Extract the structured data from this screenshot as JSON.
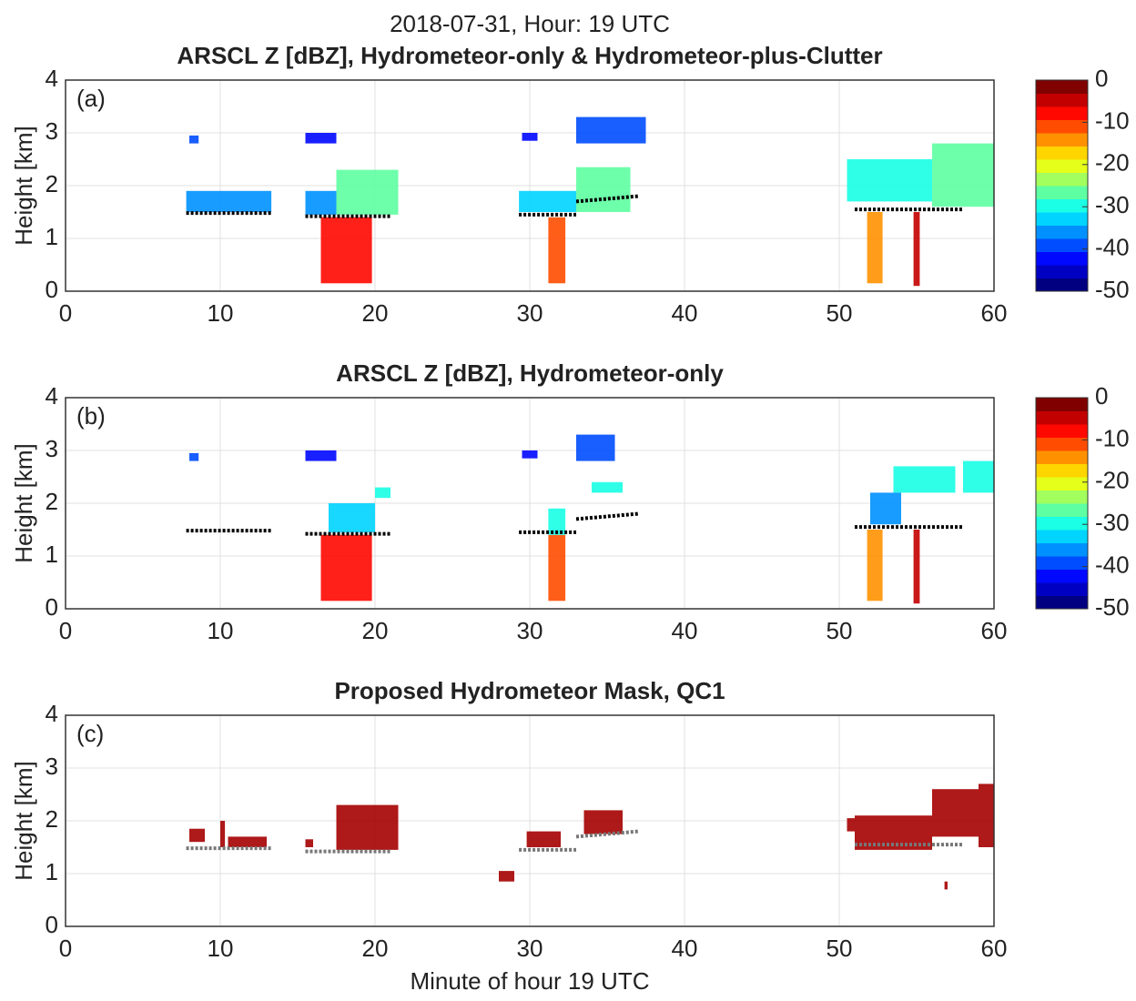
{
  "title": "2018-07-31, Hour: 19 UTC",
  "xlabel": "Minute of hour 19 UTC",
  "chart_data": [
    {
      "type": "heatmap",
      "title": "ARSCL Z [dBZ], Hydrometeor-only & Hydrometeor-plus-Clutter",
      "panel": "(a)",
      "ylabel": "Height [km]",
      "xlim": [
        0,
        60
      ],
      "xticks": [
        0,
        10,
        20,
        30,
        40,
        50,
        60
      ],
      "ylim": [
        0,
        4
      ],
      "yticks": [
        0,
        1,
        2,
        3,
        4
      ],
      "grid": true,
      "colormap": "jet",
      "colorbar": {
        "clim": [
          -50,
          0
        ],
        "ticks": [
          0,
          -10,
          -20,
          -30,
          -40,
          -50
        ]
      },
      "cells": {
        "x0": [
          7.8,
          8,
          15.5,
          17.5,
          15.5,
          16.5,
          29.3,
          33,
          29.5,
          33,
          31.2,
          50.5,
          56,
          51.8,
          54.8
        ],
        "x1": [
          13.3,
          8.6,
          17.5,
          21.5,
          17.5,
          19.8,
          33,
          36.5,
          30.5,
          37.5,
          32.3,
          56,
          60,
          52.8,
          55.2
        ],
        "y0": [
          1.5,
          2.8,
          1.45,
          1.45,
          2.8,
          0.15,
          1.5,
          1.5,
          2.85,
          2.8,
          0.15,
          1.7,
          1.6,
          0.15,
          0.1
        ],
        "y1": [
          1.9,
          2.95,
          1.9,
          2.3,
          3.0,
          1.4,
          1.9,
          2.35,
          3.0,
          3.3,
          1.4,
          2.5,
          2.8,
          1.5,
          1.5
        ],
        "values": [
          -35,
          -40,
          -35,
          -28,
          -42,
          -8,
          -33,
          -28,
          -42,
          -40,
          -10,
          -30,
          -28,
          -15,
          -5
        ]
      },
      "cloud_base": {
        "x": [
          7.8,
          13.3,
          null,
          15.5,
          21,
          null,
          29.3,
          33,
          null,
          33,
          37,
          null,
          51,
          58
        ],
        "y": [
          1.48,
          1.48,
          null,
          1.42,
          1.42,
          null,
          1.45,
          1.45,
          null,
          1.7,
          1.8,
          null,
          1.55,
          1.55
        ],
        "color": "#000000"
      }
    },
    {
      "type": "heatmap",
      "title": "ARSCL Z [dBZ], Hydrometeor-only",
      "panel": "(b)",
      "ylabel": "Height [km]",
      "xlim": [
        0,
        60
      ],
      "xticks": [
        0,
        10,
        20,
        30,
        40,
        50,
        60
      ],
      "ylim": [
        0,
        4
      ],
      "yticks": [
        0,
        1,
        2,
        3,
        4
      ],
      "grid": true,
      "colormap": "jet",
      "colorbar": {
        "clim": [
          -50,
          0
        ],
        "ticks": [
          0,
          -10,
          -20,
          -30,
          -40,
          -50
        ]
      },
      "cells": {
        "x0": [
          8,
          15.5,
          16.5,
          17,
          20,
          29.5,
          31.2,
          31.2,
          34,
          33,
          51.8,
          54.8,
          53.5,
          58,
          52
        ],
        "x1": [
          8.6,
          17.5,
          19.8,
          20,
          21,
          30.5,
          32.3,
          32.3,
          36,
          35.5,
          52.8,
          55.2,
          57.5,
          60,
          54
        ],
        "y0": [
          2.8,
          2.8,
          0.15,
          1.45,
          2.1,
          2.85,
          0.15,
          1.4,
          2.2,
          2.8,
          0.15,
          0.1,
          2.2,
          2.2,
          1.6
        ],
        "y1": [
          2.95,
          3.0,
          1.4,
          2.0,
          2.3,
          3.0,
          1.4,
          1.9,
          2.4,
          3.3,
          1.5,
          1.5,
          2.7,
          2.8,
          2.2
        ],
        "values": [
          -40,
          -42,
          -8,
          -32,
          -30,
          -42,
          -10,
          -30,
          -30,
          -40,
          -15,
          -5,
          -30,
          -30,
          -35
        ]
      },
      "cloud_base": {
        "x": [
          7.8,
          13.3,
          null,
          15.5,
          21,
          null,
          29.3,
          33,
          null,
          33,
          37,
          null,
          51,
          58
        ],
        "y": [
          1.48,
          1.48,
          null,
          1.42,
          1.42,
          null,
          1.45,
          1.45,
          null,
          1.7,
          1.8,
          null,
          1.55,
          1.55
        ],
        "color": "#000000"
      }
    },
    {
      "type": "mask",
      "title": "Proposed Hydrometeor Mask, QC1",
      "panel": "(c)",
      "ylabel": "Height [km]",
      "xlim": [
        0,
        60
      ],
      "xticks": [
        0,
        10,
        20,
        30,
        40,
        50,
        60
      ],
      "ylim": [
        0,
        4
      ],
      "yticks": [
        0,
        1,
        2,
        3,
        4
      ],
      "grid": true,
      "color": "#a50000",
      "cells": {
        "x0": [
          8,
          10,
          10.5,
          17.5,
          15.5,
          28,
          29.8,
          33.5,
          50.5,
          51,
          56,
          59,
          56.8
        ],
        "x1": [
          9,
          10.3,
          13,
          21.5,
          16,
          29,
          32,
          36,
          51,
          56,
          59,
          60,
          57
        ],
        "y0": [
          1.6,
          1.5,
          1.5,
          1.45,
          1.5,
          0.85,
          1.5,
          1.75,
          1.8,
          1.45,
          1.7,
          1.5,
          0.7
        ],
        "y1": [
          1.85,
          2.0,
          1.7,
          2.3,
          1.65,
          1.05,
          1.8,
          2.2,
          2.05,
          2.1,
          2.6,
          2.7,
          0.85
        ]
      },
      "cloud_base": {
        "x": [
          7.8,
          13.3,
          null,
          15.5,
          21,
          null,
          29.3,
          33,
          null,
          33,
          37,
          null,
          51,
          58
        ],
        "y": [
          1.48,
          1.48,
          null,
          1.42,
          1.42,
          null,
          1.45,
          1.45,
          null,
          1.7,
          1.8,
          null,
          1.55,
          1.55
        ],
        "color": "#777777"
      }
    }
  ]
}
